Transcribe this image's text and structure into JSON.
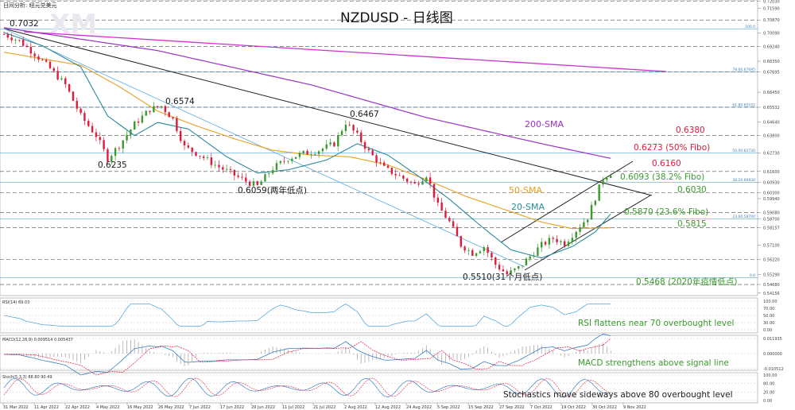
{
  "header": {
    "top_left": "日间分析: 纽元兑美元",
    "title": "NZDUSD - 日线图",
    "watermark": "XM"
  },
  "colors": {
    "bull": "#3a9a2c",
    "bear": "#e01a3a",
    "sma20": "#2a8a9a",
    "sma50": "#e8a020",
    "sma200": "#9a30c8",
    "trend_magenta": "#d030d0",
    "fib_line": "#5aaae0",
    "downtrend": "#222222",
    "channel": "#222222"
  },
  "chart_data": {
    "type": "candlestick",
    "symbol": "NZDUSD",
    "timeframe": "daily",
    "ylim": [
      0.54,
      0.72
    ],
    "y_axis_ticks": [
      "0.72030",
      "0.71590",
      "0.70870",
      "0.70090",
      "0.69240",
      "0.68350",
      "0.67695",
      "0.66450",
      "0.65532",
      "0.64640",
      "0.63800",
      "0.62730",
      "0.61600",
      "0.60930",
      "0.60300",
      "0.59940",
      "0.59080",
      "0.58700",
      "0.58157",
      "0.57100",
      "0.56220",
      "0.55290",
      "0.54680",
      "0.54156"
    ],
    "x_axis_labels": [
      "31 Mar 2022",
      "11 Apr 2022",
      "22 Apr 2022",
      "4 May 2022",
      "16 May 2022",
      "26 May 2022",
      "7 Jun 2022",
      "17 Jun 2022",
      "29 Jun 2022",
      "11 Jul 2022",
      "21 Jul 2022",
      "2 Aug 2022",
      "12 Aug 2022",
      "24 Aug 2022",
      "5 Sep 2022",
      "15 Sep 2022",
      "27 Sep 2022",
      "7 Oct 2022",
      "19 Oct 2022",
      "30 Oct 2022",
      "9 Nov 2022"
    ],
    "price_keypoints": [
      {
        "i": 0,
        "v": 0.7
      },
      {
        "i": 4,
        "v": 0.696
      },
      {
        "i": 8,
        "v": 0.688
      },
      {
        "i": 12,
        "v": 0.679
      },
      {
        "i": 16,
        "v": 0.669
      },
      {
        "i": 20,
        "v": 0.65
      },
      {
        "i": 24,
        "v": 0.638
      },
      {
        "i": 27,
        "v": 0.624
      },
      {
        "i": 30,
        "v": 0.632
      },
      {
        "i": 34,
        "v": 0.645
      },
      {
        "i": 38,
        "v": 0.654
      },
      {
        "i": 41,
        "v": 0.656
      },
      {
        "i": 44,
        "v": 0.648
      },
      {
        "i": 47,
        "v": 0.631
      },
      {
        "i": 51,
        "v": 0.626
      },
      {
        "i": 55,
        "v": 0.62
      },
      {
        "i": 59,
        "v": 0.615
      },
      {
        "i": 63,
        "v": 0.61
      },
      {
        "i": 66,
        "v": 0.607
      },
      {
        "i": 70,
        "v": 0.618
      },
      {
        "i": 74,
        "v": 0.624
      },
      {
        "i": 78,
        "v": 0.627
      },
      {
        "i": 82,
        "v": 0.629
      },
      {
        "i": 86,
        "v": 0.633
      },
      {
        "i": 89,
        "v": 0.646
      },
      {
        "i": 92,
        "v": 0.638
      },
      {
        "i": 95,
        "v": 0.628
      },
      {
        "i": 99,
        "v": 0.618
      },
      {
        "i": 103,
        "v": 0.613
      },
      {
        "i": 107,
        "v": 0.608
      },
      {
        "i": 110,
        "v": 0.614
      },
      {
        "i": 113,
        "v": 0.595
      },
      {
        "i": 116,
        "v": 0.585
      },
      {
        "i": 119,
        "v": 0.571
      },
      {
        "i": 122,
        "v": 0.566
      },
      {
        "i": 125,
        "v": 0.57
      },
      {
        "i": 128,
        "v": 0.559
      },
      {
        "i": 131,
        "v": 0.553
      },
      {
        "i": 134,
        "v": 0.557
      },
      {
        "i": 137,
        "v": 0.564
      },
      {
        "i": 140,
        "v": 0.571
      },
      {
        "i": 143,
        "v": 0.575
      },
      {
        "i": 146,
        "v": 0.572
      },
      {
        "i": 149,
        "v": 0.58
      },
      {
        "i": 152,
        "v": 0.588
      },
      {
        "i": 154,
        "v": 0.6
      },
      {
        "i": 156,
        "v": 0.612
      },
      {
        "i": 158,
        "v": 0.615
      }
    ],
    "sma20_keypoints": [
      {
        "i": 0,
        "v": 0.701
      },
      {
        "i": 10,
        "v": 0.693
      },
      {
        "i": 20,
        "v": 0.68
      },
      {
        "i": 27,
        "v": 0.65
      },
      {
        "i": 34,
        "v": 0.638
      },
      {
        "i": 40,
        "v": 0.646
      },
      {
        "i": 48,
        "v": 0.642
      },
      {
        "i": 58,
        "v": 0.625
      },
      {
        "i": 66,
        "v": 0.615
      },
      {
        "i": 74,
        "v": 0.617
      },
      {
        "i": 84,
        "v": 0.623
      },
      {
        "i": 92,
        "v": 0.633
      },
      {
        "i": 100,
        "v": 0.626
      },
      {
        "i": 108,
        "v": 0.613
      },
      {
        "i": 116,
        "v": 0.599
      },
      {
        "i": 124,
        "v": 0.583
      },
      {
        "i": 132,
        "v": 0.568
      },
      {
        "i": 140,
        "v": 0.563
      },
      {
        "i": 148,
        "v": 0.57
      },
      {
        "i": 154,
        "v": 0.579
      },
      {
        "i": 158,
        "v": 0.59
      }
    ],
    "sma50_keypoints": [
      {
        "i": 0,
        "v": 0.689
      },
      {
        "i": 10,
        "v": 0.685
      },
      {
        "i": 20,
        "v": 0.681
      },
      {
        "i": 30,
        "v": 0.668
      },
      {
        "i": 40,
        "v": 0.653
      },
      {
        "i": 50,
        "v": 0.644
      },
      {
        "i": 60,
        "v": 0.636
      },
      {
        "i": 70,
        "v": 0.629
      },
      {
        "i": 80,
        "v": 0.626
      },
      {
        "i": 90,
        "v": 0.625
      },
      {
        "i": 100,
        "v": 0.62
      },
      {
        "i": 110,
        "v": 0.611
      },
      {
        "i": 120,
        "v": 0.601
      },
      {
        "i": 130,
        "v": 0.593
      },
      {
        "i": 140,
        "v": 0.585
      },
      {
        "i": 148,
        "v": 0.581
      },
      {
        "i": 158,
        "v": 0.5815
      }
    ],
    "sma200_keypoints": [
      {
        "i": 0,
        "v": 0.704
      },
      {
        "i": 40,
        "v": 0.69
      },
      {
        "i": 80,
        "v": 0.669
      },
      {
        "i": 110,
        "v": 0.649
      },
      {
        "i": 140,
        "v": 0.633
      },
      {
        "i": 158,
        "v": 0.624
      }
    ],
    "annotations": {
      "high_7032": "0.7032",
      "high_6574": "0.6574",
      "high_6467": "0.6467",
      "low_6235": "0.6235",
      "low_6059": "0.6059(两年低点)",
      "low_5510": "0.5510(31个月低点)",
      "sma200_label": "200-SMA",
      "sma50_label": "50-SMA",
      "sma20_label": "20-SMA",
      "r_6380": "0.6380",
      "r_6273": "0.6273 (50% Fibo)",
      "r_6160": "0.6160",
      "s_6093": "0.6093 (38.2% Fibo)",
      "s_6030": "0.6030",
      "s_5870": "0.5870 (23.6% Fibo)",
      "s_5815": "0.5815",
      "s_5468": "0.5468 (2020年疫情低点)"
    },
    "fib_levels": [
      {
        "label": "100.0",
        "price": 0.7032
      },
      {
        "label": "78.60.67695",
        "price": 0.677
      },
      {
        "label": "61.80.65532",
        "price": 0.6553
      },
      {
        "label": "50.00.62730",
        "price": 0.6273
      },
      {
        "label": "38.20.60930",
        "price": 0.6093
      },
      {
        "label": "23.60.58700",
        "price": 0.587
      },
      {
        "label": "0.0",
        "price": 0.551
      }
    ],
    "indicators": {
      "rsi": {
        "label": "RSI(14) 69.03",
        "ticks": [
          "100.00",
          "70.00",
          "50.00",
          "30.00",
          "0.00"
        ],
        "note": "RSI flattens near 70 overbought level"
      },
      "macd": {
        "label": "MACD(12,26,9) 0.009514 0.005437",
        "ticks": [
          "0.011935",
          "0.000000",
          "-0.010512"
        ],
        "note": "MACD strengthens above signal line"
      },
      "stoch": {
        "label": "Stoch(5,3,3) 88.80 90.49",
        "ticks": [
          "100.00",
          "80.00",
          "20.00",
          "0.00"
        ],
        "note": "Stochastics move sideways above 80 overbought level"
      }
    }
  }
}
